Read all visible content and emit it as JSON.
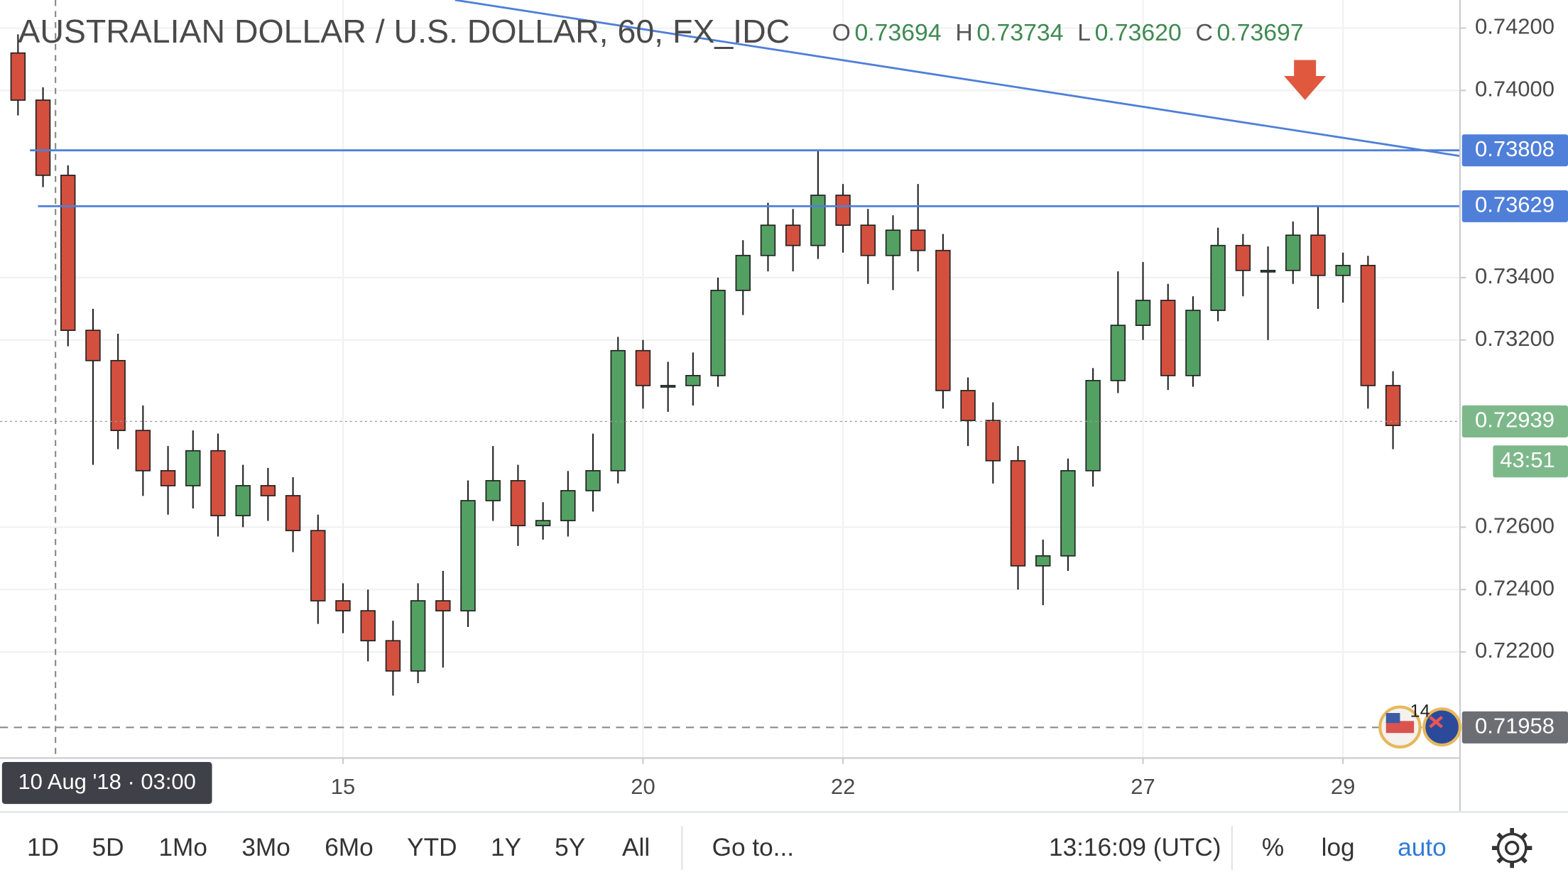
{
  "header": {
    "title": "AUSTRALIAN DOLLAR / U.S. DOLLAR, 60, FX_IDC",
    "ohlc": [
      {
        "key": "O",
        "value": "0.73694"
      },
      {
        "key": "H",
        "value": "0.73734"
      },
      {
        "key": "L",
        "value": "0.73620"
      },
      {
        "key": "C",
        "value": "0.73697"
      }
    ]
  },
  "chart_data": {
    "type": "candlestick",
    "x": [
      -0.25,
      0,
      0.25,
      0.5,
      0.75,
      1,
      1.25,
      1.5,
      1.75,
      2,
      2.25,
      2.5,
      2.75,
      3,
      3.25,
      3.5,
      3.75,
      4,
      4.25,
      4.5,
      4.75,
      5,
      5.25,
      5.5,
      5.75,
      6,
      6.25,
      6.5,
      6.75,
      7,
      7.25,
      7.5,
      7.75,
      8,
      8.25,
      8.5,
      8.75,
      9,
      9.25,
      9.5,
      9.75,
      10,
      10.25,
      10.5,
      10.75,
      11,
      11.25,
      11.5,
      11.75,
      12,
      12.25,
      12.5,
      12.75,
      13,
      13.25,
      13.5
    ],
    "open": [
      0.7412,
      0.73969,
      0.73728,
      0.73231,
      0.73134,
      0.7291,
      0.72781,
      0.72733,
      0.72845,
      0.72637,
      0.72733,
      0.72701,
      0.72589,
      0.72364,
      0.72332,
      0.72236,
      0.72139,
      0.72364,
      0.72332,
      0.72685,
      0.72749,
      0.72605,
      0.72621,
      0.72717,
      0.72781,
      0.73166,
      0.73054,
      0.73054,
      0.73086,
      0.73359,
      0.73471,
      0.73568,
      0.73503,
      0.73664,
      0.73568,
      0.73471,
      0.73552,
      0.73487,
      0.73038,
      0.72942,
      0.72813,
      0.72476,
      0.72508,
      0.72781,
      0.7307,
      0.73247,
      0.73327,
      0.73086,
      0.73295,
      0.73503,
      0.73423,
      0.73423,
      0.73536,
      0.73407,
      0.73439,
      0.73054
    ],
    "high": [
      0.7418,
      0.7401,
      0.7376,
      0.733,
      0.7322,
      0.7299,
      0.7286,
      0.7291,
      0.729,
      0.728,
      0.7279,
      0.7276,
      0.7264,
      0.7242,
      0.724,
      0.723,
      0.7242,
      0.7246,
      0.7275,
      0.7286,
      0.728,
      0.7268,
      0.7278,
      0.729,
      0.7321,
      0.732,
      0.7313,
      0.7316,
      0.734,
      0.7352,
      0.7364,
      0.7362,
      0.73808,
      0.737,
      0.7362,
      0.736,
      0.737,
      0.7354,
      0.7308,
      0.73,
      0.7286,
      0.7256,
      0.7282,
      0.7311,
      0.7342,
      0.7345,
      0.7338,
      0.7334,
      0.7356,
      0.7354,
      0.735,
      0.7358,
      0.73629,
      0.7348,
      0.7347,
      0.731
    ],
    "low": [
      0.7392,
      0.7369,
      0.7318,
      0.728,
      0.7285,
      0.727,
      0.7264,
      0.7266,
      0.7257,
      0.726,
      0.7262,
      0.7252,
      0.7229,
      0.7226,
      0.7217,
      0.7206,
      0.721,
      0.7215,
      0.7228,
      0.7262,
      0.7254,
      0.7256,
      0.7257,
      0.7265,
      0.7274,
      0.7298,
      0.7297,
      0.7299,
      0.7305,
      0.7328,
      0.7342,
      0.7342,
      0.7346,
      0.7348,
      0.7338,
      0.7336,
      0.7342,
      0.7298,
      0.7286,
      0.7274,
      0.724,
      0.7235,
      0.7246,
      0.7273,
      0.7303,
      0.732,
      0.7304,
      0.7305,
      0.7326,
      0.7334,
      0.732,
      0.7338,
      0.733,
      0.7332,
      0.7298,
      0.7285
    ],
    "close": [
      0.73969,
      0.73728,
      0.73231,
      0.73134,
      0.7291,
      0.72781,
      0.72733,
      0.72845,
      0.72637,
      0.72733,
      0.72701,
      0.72589,
      0.72364,
      0.72332,
      0.72236,
      0.72139,
      0.72364,
      0.72332,
      0.72685,
      0.72749,
      0.72605,
      0.72621,
      0.72717,
      0.72781,
      0.73166,
      0.73054,
      0.73054,
      0.73086,
      0.73359,
      0.73471,
      0.73568,
      0.73503,
      0.73664,
      0.73568,
      0.73471,
      0.73552,
      0.73487,
      0.73038,
      0.72942,
      0.72813,
      0.72476,
      0.72508,
      0.72781,
      0.7307,
      0.73247,
      0.73327,
      0.73086,
      0.73295,
      0.73503,
      0.73423,
      0.73423,
      0.73536,
      0.73407,
      0.73439,
      0.73054,
      0.72926
    ],
    "up_color": "#53a063",
    "down_color": "#d4503e",
    "xlim": [
      -0.43,
      14.17
    ],
    "ylim": [
      0.7186,
      0.7429
    ],
    "xticks": [
      {
        "value": 3,
        "label": "15"
      },
      {
        "value": 6,
        "label": "20"
      },
      {
        "value": 8,
        "label": "22"
      },
      {
        "value": 11,
        "label": "27"
      },
      {
        "value": 13,
        "label": "29"
      }
    ],
    "yticks": [
      {
        "value": 0.742,
        "label": "0.74200"
      },
      {
        "value": 0.74,
        "label": "0.74000"
      },
      {
        "value": 0.734,
        "label": "0.73400"
      },
      {
        "value": 0.732,
        "label": "0.73200"
      },
      {
        "value": 0.726,
        "label": "0.72600"
      },
      {
        "value": 0.724,
        "label": "0.72400"
      },
      {
        "value": 0.722,
        "label": "0.72200"
      }
    ],
    "grid": true,
    "levels": [
      0.73808,
      0.73629
    ],
    "level_color": "#4f7fd9",
    "trendline": {
      "x": [
        4.12,
        14.17
      ],
      "y": [
        0.7429,
        0.7379
      ]
    },
    "last_price": 0.72939,
    "countdown": "43:51",
    "low_line": 0.71958,
    "crosshair": {
      "x": 0.125,
      "label": "10 Aug '18 · 03:00"
    },
    "event_count": 14
  },
  "toolbar": {
    "ranges": [
      "1D",
      "5D",
      "1Mo",
      "3Mo",
      "6Mo",
      "YTD",
      "1Y",
      "5Y",
      "All"
    ],
    "goto": "Go to...",
    "clock": "13:16:09 (UTC)",
    "options": [
      "%",
      "log",
      "auto"
    ]
  }
}
